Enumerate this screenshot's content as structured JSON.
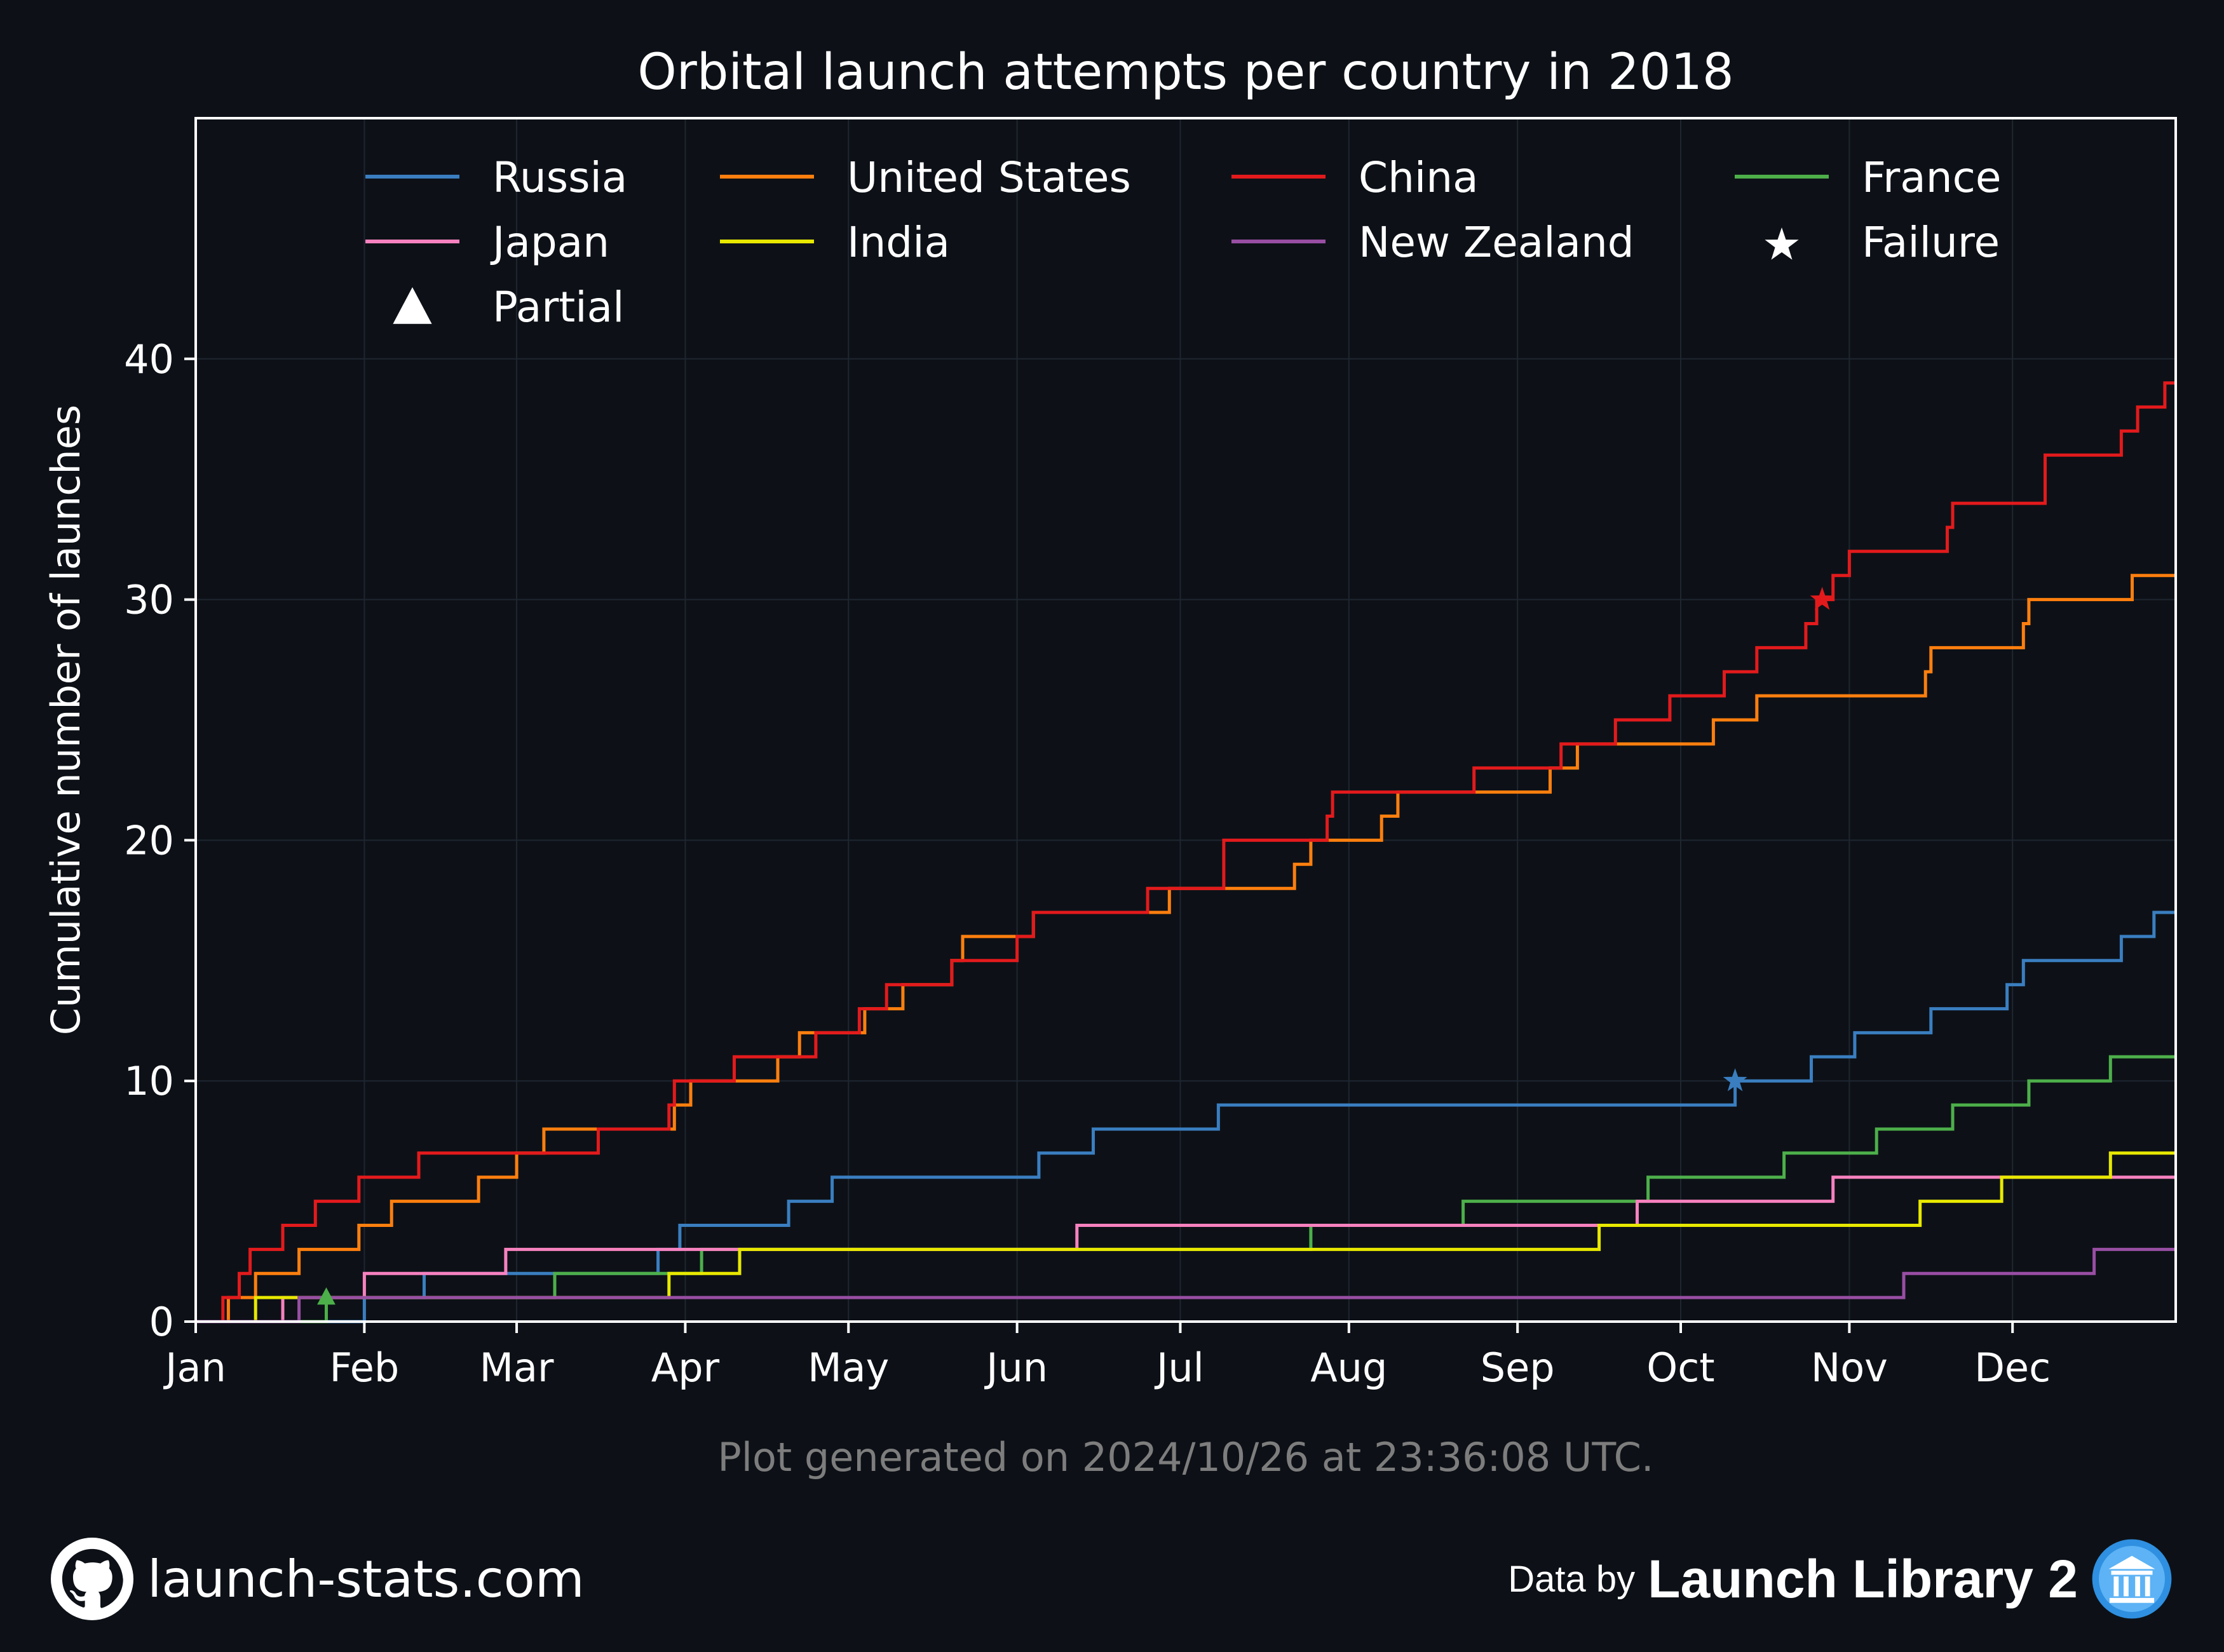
{
  "chart_data": {
    "type": "line",
    "step": true,
    "title": "Orbital launch attempts per country in 2018",
    "xlabel": "",
    "ylabel": "Cumulative number of launches",
    "x_tick_labels": [
      "Jan",
      "Feb",
      "Mar",
      "Apr",
      "May",
      "Jun",
      "Jul",
      "Aug",
      "Sep",
      "Oct",
      "Nov",
      "Dec"
    ],
    "x_tick_dates": [
      "2018-01-01",
      "2018-02-01",
      "2018-03-01",
      "2018-04-01",
      "2018-05-01",
      "2018-06-01",
      "2018-07-01",
      "2018-08-01",
      "2018-09-01",
      "2018-10-01",
      "2018-11-01",
      "2018-12-01"
    ],
    "xlim": [
      "2018-01-01",
      "2018-12-31"
    ],
    "y_ticks": [
      0,
      10,
      20,
      30,
      40
    ],
    "ylim": [
      0,
      50
    ],
    "grid": true,
    "legend_position": "top",
    "series": [
      {
        "name": "Russia",
        "color": "#3a7ec0",
        "points": [
          [
            "2018-01-01",
            0
          ],
          [
            "2018-02-01",
            1
          ],
          [
            "2018-02-12",
            1
          ],
          [
            "2018-02-12",
            2
          ],
          [
            "2018-03-27",
            3
          ],
          [
            "2018-03-31",
            4
          ],
          [
            "2018-04-20",
            5
          ],
          [
            "2018-04-28",
            6
          ],
          [
            "2018-06-05",
            7
          ],
          [
            "2018-06-15",
            8
          ],
          [
            "2018-07-08",
            9
          ],
          [
            "2018-10-11",
            10
          ],
          [
            "2018-10-25",
            11
          ],
          [
            "2018-11-02",
            12
          ],
          [
            "2018-11-16",
            13
          ],
          [
            "2018-11-30",
            14
          ],
          [
            "2018-12-03",
            15
          ],
          [
            "2018-12-21",
            16
          ],
          [
            "2018-12-27",
            17
          ],
          [
            "2018-12-31",
            17
          ]
        ]
      },
      {
        "name": "United States",
        "color": "#ff7f0e",
        "points": [
          [
            "2018-01-01",
            0
          ],
          [
            "2018-01-07",
            1
          ],
          [
            "2018-01-12",
            2
          ],
          [
            "2018-01-20",
            3
          ],
          [
            "2018-01-31",
            4
          ],
          [
            "2018-02-06",
            5
          ],
          [
            "2018-02-22",
            6
          ],
          [
            "2018-03-01",
            7
          ],
          [
            "2018-03-06",
            8
          ],
          [
            "2018-03-30",
            9
          ],
          [
            "2018-04-02",
            10
          ],
          [
            "2018-04-18",
            11
          ],
          [
            "2018-04-22",
            12
          ],
          [
            "2018-05-04",
            13
          ],
          [
            "2018-05-11",
            14
          ],
          [
            "2018-05-20",
            15
          ],
          [
            "2018-05-22",
            16
          ],
          [
            "2018-06-04",
            17
          ],
          [
            "2018-06-29",
            18
          ],
          [
            "2018-07-22",
            19
          ],
          [
            "2018-07-25",
            20
          ],
          [
            "2018-08-07",
            21
          ],
          [
            "2018-08-10",
            22
          ],
          [
            "2018-09-07",
            23
          ],
          [
            "2018-09-12",
            24
          ],
          [
            "2018-10-07",
            25
          ],
          [
            "2018-10-15",
            26
          ],
          [
            "2018-11-15",
            27
          ],
          [
            "2018-11-16",
            28
          ],
          [
            "2018-12-03",
            29
          ],
          [
            "2018-12-04",
            30
          ],
          [
            "2018-12-23",
            31
          ],
          [
            "2018-12-31",
            31
          ]
        ]
      },
      {
        "name": "China",
        "color": "#e31a1c",
        "points": [
          [
            "2018-01-01",
            0
          ],
          [
            "2018-01-06",
            1
          ],
          [
            "2018-01-09",
            2
          ],
          [
            "2018-01-11",
            3
          ],
          [
            "2018-01-17",
            4
          ],
          [
            "2018-01-23",
            5
          ],
          [
            "2018-01-31",
            6
          ],
          [
            "2018-02-11",
            7
          ],
          [
            "2018-03-16",
            8
          ],
          [
            "2018-03-29",
            9
          ],
          [
            "2018-03-30",
            10
          ],
          [
            "2018-04-10",
            11
          ],
          [
            "2018-04-25",
            12
          ],
          [
            "2018-05-03",
            13
          ],
          [
            "2018-05-08",
            14
          ],
          [
            "2018-05-20",
            15
          ],
          [
            "2018-06-01",
            16
          ],
          [
            "2018-06-04",
            17
          ],
          [
            "2018-06-25",
            18
          ],
          [
            "2018-07-09",
            20
          ],
          [
            "2018-07-28",
            21
          ],
          [
            "2018-07-29",
            22
          ],
          [
            "2018-08-24",
            23
          ],
          [
            "2018-09-09",
            24
          ],
          [
            "2018-09-19",
            25
          ],
          [
            "2018-09-29",
            26
          ],
          [
            "2018-10-09",
            27
          ],
          [
            "2018-10-15",
            28
          ],
          [
            "2018-10-24",
            29
          ],
          [
            "2018-10-26",
            30
          ],
          [
            "2018-10-29",
            31
          ],
          [
            "2018-11-01",
            32
          ],
          [
            "2018-11-19",
            33
          ],
          [
            "2018-11-20",
            34
          ],
          [
            "2018-12-07",
            36
          ],
          [
            "2018-12-21",
            37
          ],
          [
            "2018-12-24",
            38
          ],
          [
            "2018-12-29",
            39
          ],
          [
            "2018-12-31",
            39
          ]
        ]
      },
      {
        "name": "France",
        "color": "#4daf4a",
        "points": [
          [
            "2018-01-01",
            0
          ],
          [
            "2018-01-25",
            1
          ],
          [
            "2018-03-08",
            2
          ],
          [
            "2018-04-04",
            3
          ],
          [
            "2018-07-25",
            4
          ],
          [
            "2018-08-22",
            5
          ],
          [
            "2018-09-25",
            6
          ],
          [
            "2018-10-20",
            7
          ],
          [
            "2018-11-06",
            8
          ],
          [
            "2018-11-20",
            9
          ],
          [
            "2018-12-04",
            10
          ],
          [
            "2018-12-19",
            11
          ],
          [
            "2018-12-31",
            11
          ]
        ]
      },
      {
        "name": "Japan",
        "color": "#f781bf",
        "points": [
          [
            "2018-01-01",
            0
          ],
          [
            "2018-01-17",
            1
          ],
          [
            "2018-02-01",
            2
          ],
          [
            "2018-02-27",
            3
          ],
          [
            "2018-06-12",
            4
          ],
          [
            "2018-09-23",
            5
          ],
          [
            "2018-10-29",
            6
          ],
          [
            "2018-12-31",
            6
          ]
        ]
      },
      {
        "name": "India",
        "color": "#e8e800",
        "points": [
          [
            "2018-01-01",
            0
          ],
          [
            "2018-01-12",
            1
          ],
          [
            "2018-03-29",
            2
          ],
          [
            "2018-04-11",
            3
          ],
          [
            "2018-09-16",
            4
          ],
          [
            "2018-11-14",
            5
          ],
          [
            "2018-11-29",
            6
          ],
          [
            "2018-12-19",
            7
          ],
          [
            "2018-12-31",
            7
          ]
        ]
      },
      {
        "name": "New Zealand",
        "color": "#984ea3",
        "points": [
          [
            "2018-01-01",
            0
          ],
          [
            "2018-01-20",
            1
          ],
          [
            "2018-11-11",
            2
          ],
          [
            "2018-12-16",
            3
          ],
          [
            "2018-12-31",
            3
          ]
        ]
      }
    ],
    "markers": [
      {
        "type": "Partial",
        "symbol": "triangle",
        "color": "#4daf4a",
        "x": "2018-01-25",
        "y": 1
      },
      {
        "type": "Failure",
        "symbol": "star",
        "color": "#3a7ec0",
        "x": "2018-10-11",
        "y": 10
      },
      {
        "type": "Failure",
        "symbol": "star",
        "color": "#e31a1c",
        "x": "2018-10-27",
        "y": 30
      }
    ],
    "legend": [
      {
        "label": "Russia",
        "kind": "line",
        "color": "#3a7ec0"
      },
      {
        "label": "United States",
        "kind": "line",
        "color": "#ff7f0e"
      },
      {
        "label": "China",
        "kind": "line",
        "color": "#e31a1c"
      },
      {
        "label": "France",
        "kind": "line",
        "color": "#4daf4a"
      },
      {
        "label": "Japan",
        "kind": "line",
        "color": "#f781bf"
      },
      {
        "label": "India",
        "kind": "line",
        "color": "#e8e800"
      },
      {
        "label": "New Zealand",
        "kind": "line",
        "color": "#984ea3"
      },
      {
        "label": "Failure",
        "kind": "star",
        "color": "#ffffff"
      },
      {
        "label": "Partial",
        "kind": "triangle",
        "color": "#ffffff"
      }
    ]
  },
  "footnote": "Plot generated on 2024/10/26 at 23:36:08 UTC.",
  "footer": {
    "site": "launch-stats.com",
    "site_icon": "github-icon",
    "data_prefix": "Data by",
    "data_source": "Launch Library 2",
    "source_icon": "launch-library-icon"
  },
  "colors": {
    "background": "#0d1117",
    "grid": "#1f2630",
    "axes": "#ffffff"
  }
}
